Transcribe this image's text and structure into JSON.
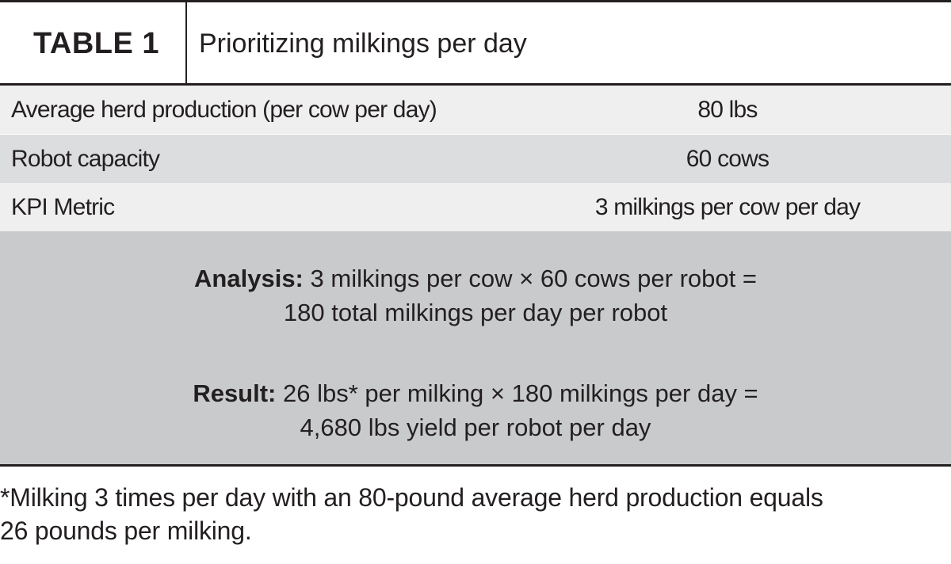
{
  "header": {
    "label": "TABLE 1",
    "title": "Prioritizing milkings per day"
  },
  "table": {
    "rows": [
      [
        "Average herd production (per cow per day)",
        "80 lbs"
      ],
      [
        "Robot capacity",
        "60 cows"
      ],
      [
        "KPI Metric",
        "3 milkings per cow per day"
      ]
    ]
  },
  "analysis": [
    {
      "lead": "Analysis:",
      "lines": [
        "3 milkings per cow × 60 cows per robot =",
        "180 total milkings per day per robot"
      ]
    },
    {
      "lead": "Result:",
      "lines": [
        "26 lbs* per milking × 180 milkings per day =",
        "4,680 lbs yield per robot per day"
      ]
    }
  ],
  "footnote": [
    "*Milking 3 times per day with an 80-pound average herd production equals",
    "26 pounds per milking."
  ]
}
